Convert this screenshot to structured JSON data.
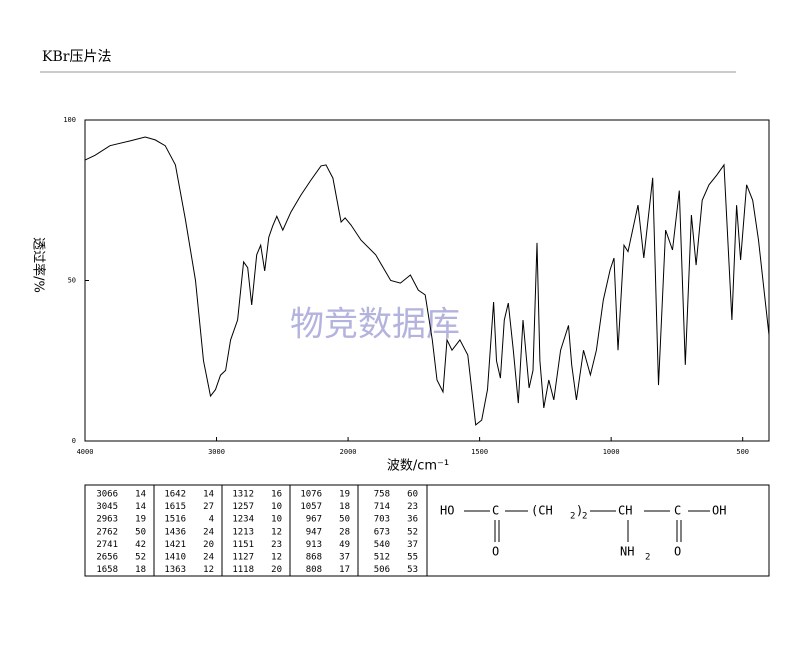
{
  "header": {
    "title": "KBr压片法"
  },
  "watermark": "物竞数据库",
  "chart_data": {
    "type": "line",
    "xlabel": "波数/cm⁻¹",
    "ylabel": "透过率/%",
    "xlim": [
      4000,
      400
    ],
    "xticks": [
      4000,
      3000,
      2000,
      1500,
      1000,
      500
    ],
    "ylim": [
      0,
      100
    ],
    "yticks": [
      0,
      50,
      100
    ],
    "series": [
      {
        "color": "#000000",
        "x": [
          4000,
          3924,
          3810,
          3656,
          3542,
          3466,
          3390,
          3313,
          3237,
          3160,
          3099,
          3046,
          3008,
          2970,
          2931,
          2893,
          2840,
          2794,
          2763,
          2733,
          2695,
          2664,
          2634,
          2603,
          2573,
          2542,
          2496,
          2435,
          2359,
          2282,
          2206,
          2168,
          2115,
          2053,
          2023,
          1989,
          1951,
          1895,
          1838,
          1801,
          1763,
          1733,
          1707,
          1680,
          1662,
          1639,
          1624,
          1605,
          1575,
          1545,
          1515,
          1492,
          1470,
          1447,
          1436,
          1421,
          1406,
          1391,
          1372,
          1353,
          1335,
          1312,
          1297,
          1282,
          1271,
          1256,
          1237,
          1218,
          1192,
          1162,
          1150,
          1132,
          1105,
          1079,
          1056,
          1030,
          1004,
          989,
          974,
          951,
          936,
          898,
          876,
          842,
          820,
          793,
          767,
          741,
          718,
          695,
          677,
          654,
          628,
          598,
          571,
          541,
          523,
          508,
          485,
          462,
          440,
          400
        ],
        "values": [
          87.5,
          89,
          92,
          93.5,
          94.7,
          93.8,
          92,
          86,
          69,
          50,
          25,
          14,
          16,
          20.5,
          22,
          31.5,
          37.7,
          55.8,
          54,
          42.4,
          58,
          61,
          53,
          63.5,
          67,
          70,
          65.7,
          71.3,
          76.6,
          81.3,
          85.7,
          86,
          81.9,
          68.2,
          69.5,
          67.3,
          62.6,
          58,
          50,
          49.2,
          51.7,
          47,
          45.5,
          31.5,
          19,
          15.3,
          31.5,
          28.3,
          31.5,
          26.8,
          5,
          6.5,
          16,
          43.3,
          25,
          19.6,
          37.7,
          43,
          28.3,
          11.8,
          37.7,
          16.5,
          22,
          61.7,
          25,
          10.3,
          19,
          12.8,
          28.3,
          36,
          23.7,
          12.8,
          28.3,
          20.6,
          28.3,
          43.9,
          53.3,
          57,
          28.3,
          61,
          59,
          73.5,
          57,
          82,
          17.4,
          65.7,
          59.5,
          78,
          23.7,
          70.4,
          54.8,
          75,
          79.8,
          82.9,
          86,
          37.7,
          73.5,
          56.4,
          79.8,
          75,
          62.6,
          33
        ]
      }
    ]
  },
  "peaks": [
    [
      [
        3066,
        14
      ],
      [
        3045,
        14
      ],
      [
        2963,
        19
      ],
      [
        2762,
        50
      ],
      [
        2741,
        42
      ],
      [
        2656,
        52
      ],
      [
        1658,
        18
      ]
    ],
    [
      [
        1642,
        14
      ],
      [
        1615,
        27
      ],
      [
        1516,
        4
      ],
      [
        1436,
        24
      ],
      [
        1421,
        20
      ],
      [
        1410,
        24
      ],
      [
        1363,
        12
      ]
    ],
    [
      [
        1312,
        16
      ],
      [
        1257,
        10
      ],
      [
        1234,
        10
      ],
      [
        1213,
        12
      ],
      [
        1151,
        23
      ],
      [
        1127,
        12
      ],
      [
        1118,
        20
      ]
    ],
    [
      [
        1076,
        19
      ],
      [
        1057,
        18
      ],
      [
        967,
        50
      ],
      [
        947,
        28
      ],
      [
        913,
        49
      ],
      [
        868,
        37
      ],
      [
        808,
        17
      ]
    ],
    [
      [
        758,
        60
      ],
      [
        714,
        23
      ],
      [
        703,
        36
      ],
      [
        673,
        52
      ],
      [
        540,
        37
      ],
      [
        512,
        55
      ],
      [
        506,
        53
      ]
    ]
  ],
  "structure": {
    "atoms": [
      "HO",
      "C",
      "(CH",
      "2",
      ")",
      "2",
      "CH",
      "C",
      "OH",
      "O",
      "NH",
      "2",
      "O"
    ]
  }
}
